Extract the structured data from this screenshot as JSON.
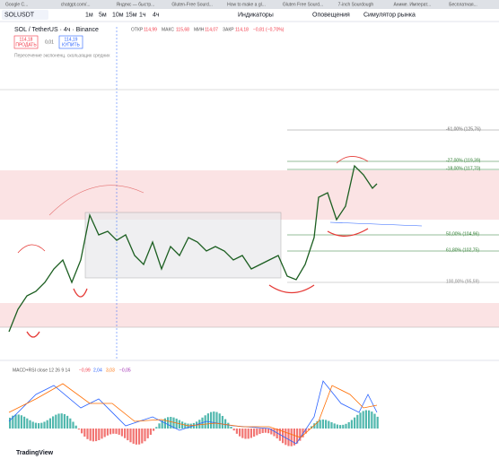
{
  "tabs": [
    "Google C...",
    "chatgpt.com/...",
    "Яндекс — быстр...",
    "Gluten-Free Sourd...",
    "How to make a gl...",
    "Gluten Free Sourd...",
    "7-inch Sourdough",
    "Аниме. Императ...",
    "Бесплатная..."
  ],
  "toolbar": {
    "symbol": "SOLUSDT",
    "intervals": [
      "1м",
      "5м",
      "10м",
      "15м",
      "1ч",
      "4ч"
    ],
    "indicators": "Индикаторы",
    "alerts": "Оповещения",
    "simulator": "Симулятор рынка"
  },
  "header": {
    "title": "SOL / TetherUS · 4ч · Binance",
    "open_label": "ОТКР",
    "open": "114,99",
    "high_label": "МАКС",
    "high": "115,68",
    "low_label": "МИН",
    "low": "114,07",
    "close_label": "ЗАКР",
    "close": "114,18",
    "change": "−0,81 (−0,70%)"
  },
  "trade": {
    "sell_price": "114,18",
    "sell": "ПРОДАТЬ",
    "spread": "0,01",
    "buy_price": "114,19",
    "buy": "КУПИТЬ"
  },
  "indicator_label": "Пересечение экспоненц. скользящих средних",
  "fib_levels": [
    "-61,00% (125,76)",
    "-27,00% (119,39)",
    "-18,00% (117,70)",
    "50,00% (104,96)",
    "61,80% (102,75)",
    "100,00% (95,59)"
  ],
  "macd": {
    "label": "MACD+RSI close 12 26 9 14",
    "v1": "−0,99",
    "v2": "2,04",
    "v3": "3,03",
    "v4": "−0,05"
  },
  "brand": "TradingView"
}
